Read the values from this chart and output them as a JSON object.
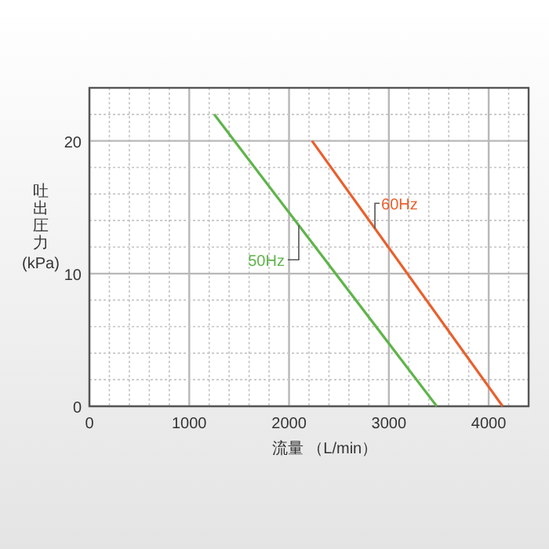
{
  "chart_data": {
    "type": "line",
    "xlabel": "流量 （L/min）",
    "ylabel": "吐出圧力(kPa)",
    "series": [
      {
        "name": "50Hz",
        "color": "#5fb44a",
        "x": [
          1250,
          3480
        ],
        "values": [
          22,
          0
        ]
      },
      {
        "name": "60Hz",
        "color": "#e8602c",
        "x": [
          2230,
          4140
        ],
        "values": [
          20,
          0
        ]
      }
    ],
    "xlim": [
      0,
      4400
    ],
    "ylim": [
      0,
      24
    ],
    "xticks": [
      0,
      {
        "value": 200,
        "label": null
      },
      {
        "value": 400,
        "label": null
      },
      {
        "value": 600,
        "label": null
      },
      {
        "value": 800,
        "label": null
      },
      1000,
      {
        "value": 1200,
        "label": null
      },
      {
        "value": 1400,
        "label": null
      },
      {
        "value": 1600,
        "label": null
      },
      {
        "value": 1800,
        "label": null
      },
      2000,
      {
        "value": 2200,
        "label": null
      },
      {
        "value": 2400,
        "label": null
      },
      {
        "value": 2600,
        "label": null
      },
      {
        "value": 2800,
        "label": null
      },
      3000,
      {
        "value": 3200,
        "label": null
      },
      {
        "value": 3400,
        "label": null
      },
      {
        "value": 3600,
        "label": null
      },
      {
        "value": 3800,
        "label": null
      },
      4000,
      {
        "value": 4200,
        "label": null
      }
    ],
    "yticks": [
      0,
      {
        "value": 2,
        "label": null
      },
      {
        "value": 4,
        "label": null
      },
      {
        "value": 6,
        "label": null
      },
      {
        "value": 8,
        "label": null
      },
      10,
      {
        "value": 12,
        "label": null
      },
      {
        "value": 14,
        "label": null
      },
      {
        "value": 16,
        "label": null
      },
      {
        "value": 18,
        "label": null
      },
      20,
      {
        "value": 22,
        "label": null
      }
    ],
    "grid": true,
    "marker": "none",
    "line_style": "solid"
  }
}
